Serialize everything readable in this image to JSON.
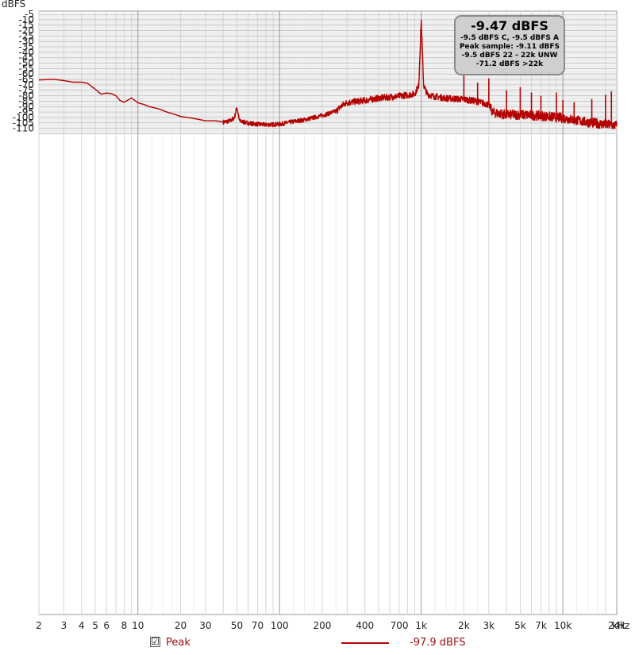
{
  "chart_data": {
    "type": "line",
    "ylabel": "dBFS",
    "xlabel": "",
    "x_unit_label": "kHz",
    "x_scale": "log",
    "xlim": [
      2,
      24000
    ],
    "ylim": [
      -115,
      -5
    ],
    "x_ticks": [
      {
        "v": 2,
        "label": "2"
      },
      {
        "v": 3,
        "label": "3"
      },
      {
        "v": 4,
        "label": "4"
      },
      {
        "v": 5,
        "label": "5"
      },
      {
        "v": 6,
        "label": "6"
      },
      {
        "v": 8,
        "label": "8"
      },
      {
        "v": 10,
        "label": "10"
      },
      {
        "v": 20,
        "label": "20"
      },
      {
        "v": 30,
        "label": "30"
      },
      {
        "v": 50,
        "label": "50"
      },
      {
        "v": 70,
        "label": "70"
      },
      {
        "v": 100,
        "label": "100"
      },
      {
        "v": 200,
        "label": "200"
      },
      {
        "v": 400,
        "label": "400"
      },
      {
        "v": 700,
        "label": "700"
      },
      {
        "v": 1000,
        "label": "1k"
      },
      {
        "v": 2000,
        "label": "2k"
      },
      {
        "v": 3000,
        "label": "3k"
      },
      {
        "v": 5000,
        "label": "5k"
      },
      {
        "v": 7000,
        "label": "7k"
      },
      {
        "v": 10000,
        "label": "10k"
      },
      {
        "v": 24000,
        "label": "24k"
      }
    ],
    "y_ticks": [
      -5,
      -10,
      -15,
      -20,
      -25,
      -30,
      -35,
      -40,
      -45,
      -50,
      -55,
      -60,
      -65,
      -70,
      -75,
      -80,
      -85,
      -90,
      -95,
      -100,
      -105,
      -110
    ],
    "grid": true,
    "series": [
      {
        "name": "Peak",
        "color": "#b40000",
        "x": [
          2,
          2.5,
          3,
          3.5,
          4,
          4.4,
          5,
          5.5,
          6,
          6.5,
          7,
          7.5,
          8,
          8.5,
          9,
          10,
          11,
          12,
          14,
          16,
          18,
          20,
          25,
          30,
          35,
          40,
          45,
          48,
          50,
          52,
          60,
          70,
          80,
          100,
          120,
          150,
          200,
          250,
          280,
          300,
          400,
          500,
          700,
          900,
          960,
          1000,
          1040,
          1100,
          1200,
          1500,
          2000,
          2500,
          3000,
          3200,
          4000,
          5000,
          7000,
          10000,
          15000,
          20000,
          24000
        ],
        "y": [
          -65.5,
          -64.8,
          -66,
          -67.5,
          -67.5,
          -68.5,
          -74,
          -78.5,
          -77.5,
          -78,
          -80,
          -84.5,
          -86,
          -84,
          -82,
          -86.5,
          -88,
          -90,
          -92,
          -95,
          -97,
          -99,
          -101,
          -103,
          -103,
          -104,
          -103,
          -100,
          -90,
          -103,
          -105,
          -106,
          -106.5,
          -106,
          -104,
          -102,
          -98,
          -94,
          -88,
          -86,
          -84,
          -82,
          -80,
          -78,
          -70,
          -10,
          -70,
          -78,
          -80,
          -82,
          -83,
          -85,
          -88,
          -95,
          -97,
          -97,
          -98,
          -100,
          -104,
          -106,
          -107
        ]
      }
    ],
    "spurs": [
      {
        "x": 50,
        "y": -90
      },
      {
        "x": 1000,
        "y": -10
      },
      {
        "x": 2000,
        "y": -60
      },
      {
        "x": 2500,
        "y": -68
      },
      {
        "x": 3000,
        "y": -64
      },
      {
        "x": 4000,
        "y": -75
      },
      {
        "x": 5000,
        "y": -72
      },
      {
        "x": 6000,
        "y": -77
      },
      {
        "x": 7000,
        "y": -80
      },
      {
        "x": 9000,
        "y": -77
      },
      {
        "x": 10000,
        "y": -84
      },
      {
        "x": 12000,
        "y": -86
      },
      {
        "x": 16000,
        "y": -83
      },
      {
        "x": 20000,
        "y": -79
      },
      {
        "x": 22000,
        "y": -76
      }
    ]
  },
  "readout": {
    "main": "-9.47 dBFS",
    "line1": "-9.5 dBFS C, -9.5 dBFS A",
    "line2": "Peak sample: -9.11 dBFS",
    "line3": "-9.5 dBFS 22 - 22k UNW",
    "line4": "-71.2 dBFS >22k"
  },
  "legend": {
    "checked": true,
    "check_glyph": "☑",
    "name": "Peak",
    "value": "-97.9 dBFS",
    "color": "#b40000"
  }
}
